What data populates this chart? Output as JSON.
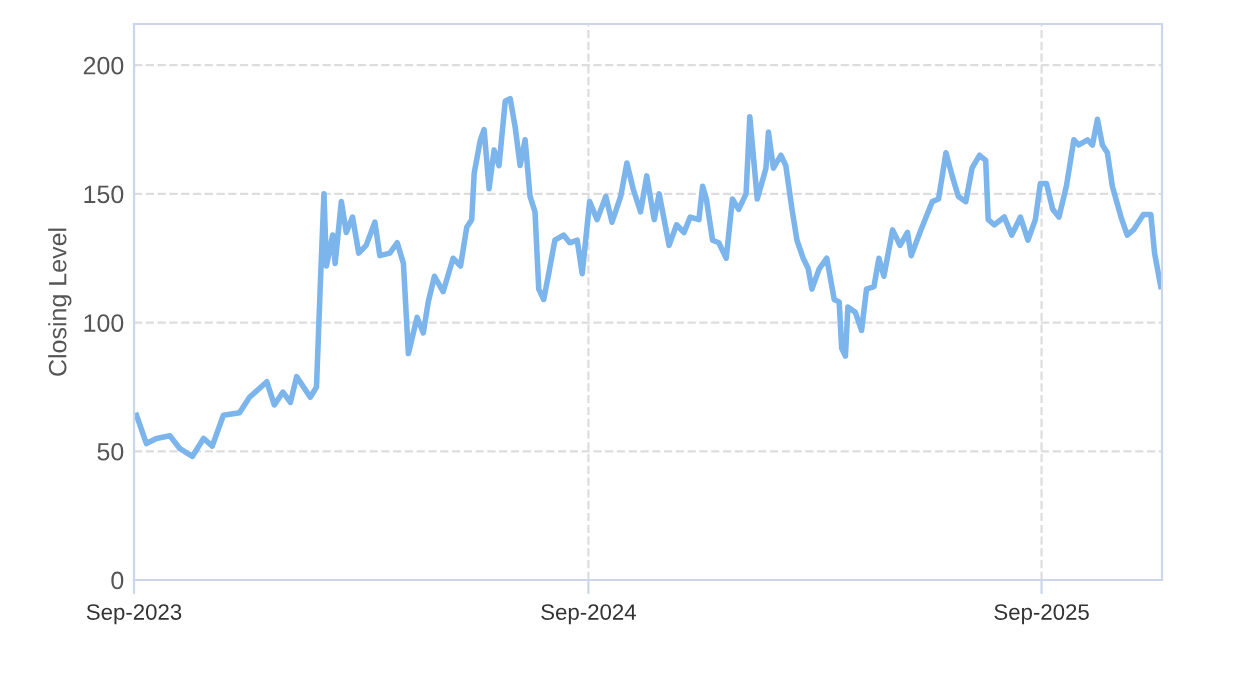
{
  "chart_data": {
    "type": "line",
    "ylabel": "Closing Level",
    "xlim": [
      "2023-09-01",
      "2025-12-07"
    ],
    "ylim": [
      0,
      216
    ],
    "xticks": [
      {
        "value": "2023-09-01",
        "label": "Sep-2023"
      },
      {
        "value": "2024-09-01",
        "label": "Sep-2024"
      },
      {
        "value": "2025-09-01",
        "label": "Sep-2025"
      }
    ],
    "yticks": [
      0,
      50,
      100,
      150,
      200
    ],
    "grid": true,
    "marker": "none",
    "line_style": "solid",
    "series": [
      {
        "color": "#7cb5ec",
        "x": [
          "2023-09-03",
          "2023-09-11",
          "2023-09-19",
          "2023-09-30",
          "2023-10-08",
          "2023-10-18",
          "2023-10-27",
          "2023-11-03",
          "2023-11-12",
          "2023-11-25",
          "2023-12-03",
          "2023-12-17",
          "2023-12-23",
          "2023-12-30",
          "2024-01-05",
          "2024-01-10",
          "2024-01-21",
          "2024-01-26",
          "2024-01-29",
          "2024-02-01",
          "2024-02-03",
          "2024-02-08",
          "2024-02-10",
          "2024-02-15",
          "2024-02-19",
          "2024-02-24",
          "2024-02-29",
          "2024-03-06",
          "2024-03-13",
          "2024-03-17",
          "2024-03-25",
          "2024-03-31",
          "2024-04-05",
          "2024-04-09",
          "2024-04-16",
          "2024-04-21",
          "2024-04-25",
          "2024-04-30",
          "2024-05-07",
          "2024-05-15",
          "2024-05-21",
          "2024-05-26",
          "2024-05-30",
          "2024-06-01",
          "2024-06-06",
          "2024-06-09",
          "2024-06-13",
          "2024-06-17",
          "2024-06-21",
          "2024-06-26",
          "2024-06-30",
          "2024-07-04",
          "2024-07-08",
          "2024-07-12",
          "2024-07-16",
          "2024-07-20",
          "2024-07-23",
          "2024-07-27",
          "2024-07-31",
          "2024-08-05",
          "2024-08-12",
          "2024-08-17",
          "2024-08-23",
          "2024-08-27",
          "2024-09-02",
          "2024-09-08",
          "2024-09-15",
          "2024-09-20",
          "2024-09-27",
          "2024-10-02",
          "2024-10-07",
          "2024-10-13",
          "2024-10-18",
          "2024-10-24",
          "2024-10-28",
          "2024-11-05",
          "2024-11-11",
          "2024-11-17",
          "2024-11-22",
          "2024-11-29",
          "2024-12-02",
          "2024-12-05",
          "2024-12-10",
          "2024-12-15",
          "2024-12-21",
          "2024-12-26",
          "2024-12-31",
          "2025-01-06",
          "2025-01-09",
          "2025-01-15",
          "2025-01-22",
          "2025-01-24",
          "2025-01-28",
          "2025-02-03",
          "2025-02-07",
          "2025-02-12",
          "2025-02-16",
          "2025-02-21",
          "2025-02-25",
          "2025-02-28",
          "2025-03-06",
          "2025-03-12",
          "2025-03-18",
          "2025-03-22",
          "2025-03-24",
          "2025-03-27",
          "2025-03-29",
          "2025-04-04",
          "2025-04-09",
          "2025-04-13",
          "2025-04-19",
          "2025-04-23",
          "2025-04-27",
          "2025-05-04",
          "2025-05-10",
          "2025-05-16",
          "2025-05-19",
          "2025-05-26",
          "2025-05-31",
          "2025-06-05",
          "2025-06-10",
          "2025-06-16",
          "2025-06-21",
          "2025-06-26",
          "2025-07-02",
          "2025-07-07",
          "2025-07-13",
          "2025-07-18",
          "2025-07-20",
          "2025-07-25",
          "2025-08-02",
          "2025-08-08",
          "2025-08-15",
          "2025-08-21",
          "2025-08-27",
          "2025-08-31",
          "2025-09-05",
          "2025-09-10",
          "2025-09-15",
          "2025-09-21",
          "2025-09-27",
          "2025-10-01",
          "2025-10-08",
          "2025-10-12",
          "2025-10-16",
          "2025-10-20",
          "2025-10-24",
          "2025-10-28",
          "2025-11-04",
          "2025-11-09",
          "2025-11-14",
          "2025-11-22",
          "2025-11-28",
          "2025-12-01",
          "2025-12-06"
        ],
        "values": [
          64,
          53,
          55,
          56,
          51,
          48,
          55,
          52,
          64,
          65,
          71,
          77,
          68,
          73,
          69,
          79,
          71,
          75,
          114,
          150,
          122,
          134,
          123,
          147,
          135,
          141,
          127,
          130,
          139,
          126,
          127,
          131,
          123,
          88,
          102,
          96,
          108,
          118,
          112,
          125,
          122,
          137,
          140,
          158,
          171,
          175,
          152,
          167,
          161,
          186,
          187,
          176,
          161,
          171,
          149,
          143,
          113,
          109,
          119,
          132,
          134,
          131,
          132,
          119,
          147,
          140,
          149,
          139,
          149,
          162,
          152,
          143,
          157,
          140,
          150,
          130,
          138,
          135,
          141,
          140,
          153,
          148,
          132,
          131,
          125,
          148,
          144,
          150,
          180,
          148,
          160,
          174,
          160,
          165,
          161,
          144,
          132,
          125,
          121,
          113,
          121,
          125,
          109,
          108,
          90,
          87,
          106,
          104,
          97,
          113,
          114,
          125,
          118,
          136,
          130,
          135,
          126,
          135,
          141,
          147,
          148,
          166,
          157,
          149,
          147,
          160,
          165,
          163,
          140,
          138,
          141,
          134,
          141,
          132,
          140,
          154,
          154,
          144,
          141,
          153,
          171,
          169,
          171,
          169,
          179,
          169,
          166,
          153,
          141,
          134,
          136,
          142,
          142,
          127,
          114
        ]
      }
    ]
  }
}
